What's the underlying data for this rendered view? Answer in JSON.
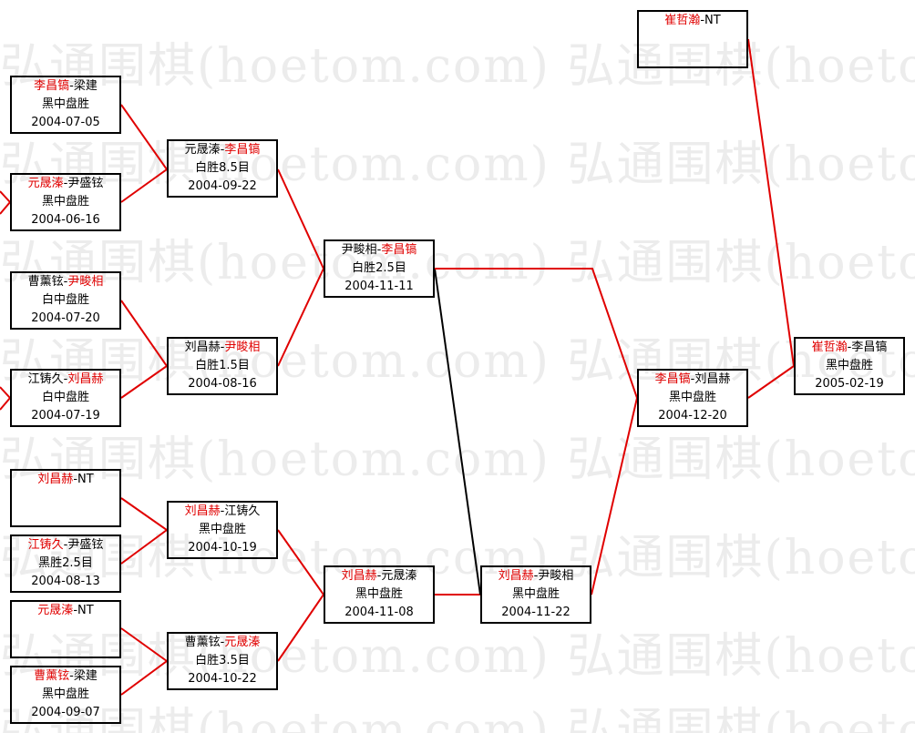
{
  "watermark": "弘通围棋(hoetom.com) 弘通围棋(hoetom.com)",
  "colors": {
    "winner": "#e00000",
    "line_win": "#e00000",
    "line_loss": "#000000"
  },
  "matches": [
    {
      "p1": "李昌镐",
      "p2": "梁建",
      "win": "p1",
      "result": "黑中盘胜",
      "date": "2004-07-05"
    },
    {
      "p1": "元晟溱",
      "p2": "尹盛铉",
      "win": "p1",
      "result": "黑中盘胜",
      "date": "2004-06-16"
    },
    {
      "p1": "曹薰铉",
      "p2": "尹畯相",
      "win": "p2",
      "result": "白中盘胜",
      "date": "2004-07-20"
    },
    {
      "p1": "江铸久",
      "p2": "刘昌赫",
      "win": "p2",
      "result": "白中盘胜",
      "date": "2004-07-19"
    },
    {
      "p1": "刘昌赫",
      "p2": "NT",
      "win": "p1",
      "result": "",
      "date": ""
    },
    {
      "p1": "江铸久",
      "p2": "尹盛铉",
      "win": "p1",
      "result": "黑胜2.5目",
      "date": "2004-08-13"
    },
    {
      "p1": "元晟溱",
      "p2": "NT",
      "win": "p1",
      "result": "",
      "date": ""
    },
    {
      "p1": "曹薰铉",
      "p2": "梁建",
      "win": "p1",
      "result": "黑中盘胜",
      "date": "2004-09-07"
    },
    {
      "p1": "元晟溱",
      "p2": "李昌镐",
      "win": "p2",
      "result": "白胜8.5目",
      "date": "2004-09-22"
    },
    {
      "p1": "刘昌赫",
      "p2": "尹畯相",
      "win": "p2",
      "result": "白胜1.5目",
      "date": "2004-08-16"
    },
    {
      "p1": "刘昌赫",
      "p2": "江铸久",
      "win": "p1",
      "result": "黑中盘胜",
      "date": "2004-10-19"
    },
    {
      "p1": "曹薰铉",
      "p2": "元晟溱",
      "win": "p2",
      "result": "白胜3.5目",
      "date": "2004-10-22"
    },
    {
      "p1": "尹畯相",
      "p2": "李昌镐",
      "win": "p2",
      "result": "白胜2.5目",
      "date": "2004-11-11"
    },
    {
      "p1": "刘昌赫",
      "p2": "元晟溱",
      "win": "p1",
      "result": "黑中盘胜",
      "date": "2004-11-08"
    },
    {
      "p1": "刘昌赫",
      "p2": "尹畯相",
      "win": "p1",
      "result": "黑中盘胜",
      "date": "2004-11-22"
    },
    {
      "p1": "李昌镐",
      "p2": "刘昌赫",
      "win": "p1",
      "result": "黑中盘胜",
      "date": "2004-12-20"
    },
    {
      "p1": "崔哲瀚",
      "p2": "NT",
      "win": "p1",
      "result": "",
      "date": ""
    },
    {
      "p1": "崔哲瀚",
      "p2": "李昌镐",
      "win": "p1",
      "result": "黑中盘胜",
      "date": "2005-02-19"
    }
  ]
}
